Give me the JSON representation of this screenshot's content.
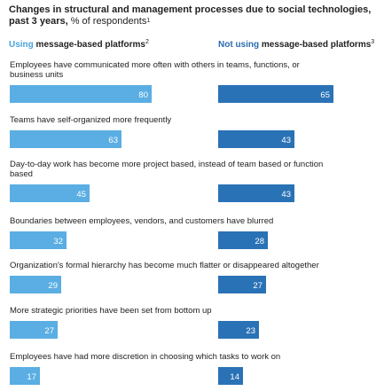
{
  "title": {
    "main": "Changes in structural and management processes due to social technologies, past 3 years,",
    "tail": " % of respondents",
    "sup": "1"
  },
  "headers": {
    "left": {
      "accent": "Using",
      "rest": " message-based platforms",
      "sup": "2"
    },
    "right": {
      "accent": "Not using",
      "rest": " message-based platforms",
      "sup": "3"
    }
  },
  "colors": {
    "using": "#5aaee3",
    "not_using": "#2a72b6",
    "accent_using": "#4aa3df",
    "accent_not": "#2b6cb0"
  },
  "chart_data": {
    "type": "bar",
    "unit": "% of respondents",
    "xlim": [
      0,
      100
    ],
    "categories": [
      "Employees have communicated more often with others in teams, functions, or business units",
      "Teams have self-organized more frequently",
      "Day-to-day work has become more project based, instead of team based or function based",
      "Boundaries between employees, vendors, and customers have blurred",
      "Organization's formal hierarchy has become much flatter or disappeared altogether",
      "More strategic priorities have been set from bottom up",
      "Employees have had more discretion in choosing which tasks to work on"
    ],
    "series": [
      {
        "name": "Using message-based platforms",
        "values": [
          80,
          63,
          45,
          32,
          29,
          27,
          17
        ]
      },
      {
        "name": "Not using message-based platforms",
        "values": [
          65,
          43,
          43,
          28,
          27,
          23,
          14
        ]
      }
    ]
  }
}
